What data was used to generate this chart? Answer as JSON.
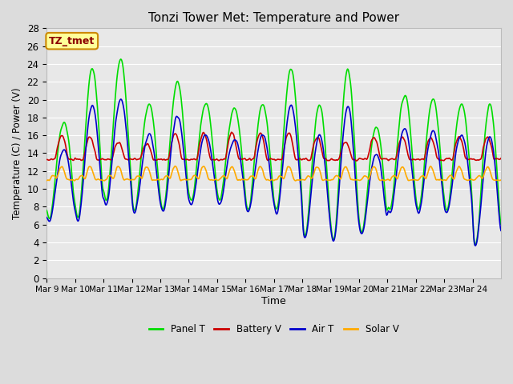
{
  "title": "Tonzi Tower Met: Temperature and Power",
  "xlabel": "Time",
  "ylabel": "Temperature (C) / Power (V)",
  "ylim": [
    0,
    28
  ],
  "annotation_label": "TZ_tmet",
  "background_color": "#dcdcdc",
  "plot_bg_color": "#e8e8e8",
  "grid_color": "#ffffff",
  "colors": {
    "panel_t": "#00dd00",
    "battery_v": "#cc0000",
    "air_t": "#0000cc",
    "solar_v": "#ffaa00"
  },
  "legend_labels": [
    "Panel T",
    "Battery V",
    "Air T",
    "Solar V"
  ],
  "x_tick_labels": [
    "Mar 9",
    "Mar 10",
    "Mar 11",
    "Mar 12",
    "Mar 13",
    "Mar 14",
    "Mar 15",
    "Mar 16",
    "Mar 17",
    "Mar 18",
    "Mar 19",
    "Mar 20",
    "Mar 21",
    "Mar 22",
    "Mar 23",
    "Mar 24"
  ],
  "n_days": 16,
  "points_per_day": 48
}
